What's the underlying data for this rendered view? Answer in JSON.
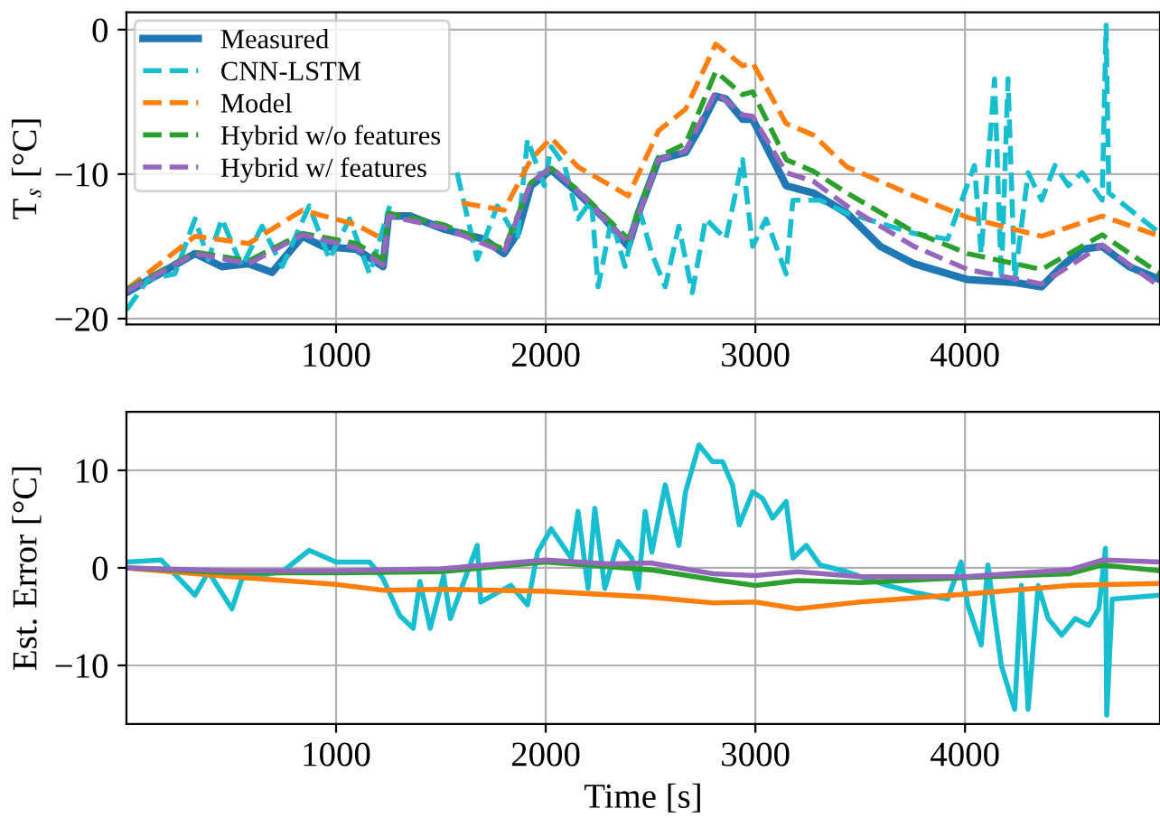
{
  "chart_data": [
    {
      "type": "line",
      "ylabel": "T$_{s}$ [°C]",
      "xlim": [
        0,
        4930
      ],
      "ylim": [
        -20.4,
        1.2
      ],
      "xticks": [
        1000,
        2000,
        3000,
        4000
      ],
      "yticks": [
        -20,
        -10,
        0
      ],
      "grid": true,
      "legend": "top left",
      "series": [
        {
          "name": "Measured",
          "color": "#1f77b4",
          "line_style": "solid",
          "x": [
            0,
            327,
            455,
            583,
            695,
            840,
            936,
            1096,
            1224,
            1250,
            1352,
            1513,
            1705,
            1801,
            1865,
            1929,
            2026,
            2154,
            2282,
            2394,
            2442,
            2538,
            2667,
            2731,
            2811,
            2859,
            2939,
            2987,
            3147,
            3276,
            3436,
            3596,
            3756,
            4013,
            4237,
            4365,
            4461,
            4558,
            4654,
            4782,
            4930
          ],
          "values": [
            -18.2,
            -15.5,
            -16.4,
            -16.2,
            -16.8,
            -14.3,
            -15.0,
            -15.2,
            -16.4,
            -12.9,
            -12.9,
            -13.8,
            -14.5,
            -15.5,
            -14.1,
            -10.8,
            -9.7,
            -11.3,
            -13.1,
            -15.0,
            -12.7,
            -9.0,
            -8.5,
            -6.9,
            -4.6,
            -4.8,
            -6.2,
            -6.2,
            -10.8,
            -11.3,
            -12.7,
            -15.0,
            -16.2,
            -17.3,
            -17.5,
            -17.8,
            -16.4,
            -15.2,
            -15.0,
            -16.4,
            -17.3
          ]
        },
        {
          "name": "CNN-LSTM",
          "color": "#17becf",
          "line_style": "dashed",
          "x": [
            0,
            103,
            231,
            327,
            391,
            455,
            551,
            647,
            743,
            872,
            968,
            1064,
            1160,
            1256,
            1352,
            1384,
            1449,
            1513,
            1577,
            1673,
            1769,
            1865,
            1913,
            1993,
            2026,
            2090,
            2154,
            2218,
            2250,
            2314,
            2378,
            2442,
            2506,
            2570,
            2635,
            2699,
            2763,
            2859,
            2939,
            2987,
            3051,
            3147,
            3179,
            3308,
            3436,
            3756,
            3917,
            4045,
            4077,
            4141,
            4173,
            4205,
            4237,
            4301,
            4365,
            4429,
            4493,
            4558,
            4654,
            4673,
            4686,
            4930
          ],
          "values": [
            -19.4,
            -17.3,
            -16.9,
            -13.1,
            -15.9,
            -13.1,
            -16.4,
            -13.6,
            -16.4,
            -12.2,
            -15.9,
            -13.1,
            -16.9,
            -12.2,
            null,
            null,
            null,
            null,
            -9.9,
            -15.9,
            -12.2,
            -14.5,
            -7.6,
            -10.8,
            -8.1,
            -9.4,
            -13.1,
            -11.8,
            -17.8,
            -13.1,
            -16.4,
            -12.2,
            -15.5,
            -17.8,
            -13.6,
            -18.2,
            -13.1,
            -14.5,
            -9.0,
            -15.0,
            -13.1,
            -16.9,
            -11.8,
            -11.8,
            -12.7,
            -14.1,
            -14.5,
            -9.4,
            -15.5,
            -3.4,
            -17.3,
            -3.4,
            -17.3,
            -9.9,
            -11.8,
            -9.4,
            -10.8,
            -9.9,
            -11.8,
            0.3,
            -11.3,
            -14.1
          ]
        },
        {
          "name": "Model",
          "color": "#ff7f0e",
          "line_style": "dashed",
          "x": [
            0,
            327,
            583,
            840,
            1096,
            1224,
            1250,
            1513,
            1600,
            1801,
            1929,
            2026,
            2154,
            2394,
            2538,
            2667,
            2811,
            2939,
            2987,
            3147,
            3276,
            3436,
            3756,
            4013,
            4365,
            4654,
            4930
          ],
          "values": [
            -18.0,
            -14.3,
            -14.8,
            -12.5,
            -13.5,
            -14.5,
            null,
            null,
            -12.0,
            -12.5,
            -9.0,
            -7.5,
            -9.5,
            -11.5,
            -7.0,
            -5.5,
            -1.0,
            -2.5,
            -2.3,
            -6.5,
            -7.3,
            -9.5,
            -11.5,
            -13.0,
            -14.3,
            -12.9,
            -14.3
          ]
        },
        {
          "name": "Hybrid w/o features",
          "color": "#2ca02c",
          "line_style": "dashed",
          "x": [
            0,
            327,
            583,
            840,
            1096,
            1224,
            1250,
            1513,
            1801,
            1929,
            2026,
            2154,
            2394,
            2538,
            2667,
            2811,
            2939,
            2987,
            3147,
            3276,
            3436,
            3756,
            4013,
            4365,
            4654,
            4930
          ],
          "values": [
            -18.0,
            -15.4,
            -16.0,
            -14.1,
            -14.8,
            -15.9,
            -12.7,
            -13.5,
            -15.2,
            -10.6,
            -9.6,
            -11.1,
            -14.5,
            -8.8,
            -7.9,
            -2.9,
            -4.5,
            -4.3,
            -9.0,
            -9.8,
            -11.3,
            -14.0,
            -15.5,
            -16.6,
            -14.2,
            -16.9
          ]
        },
        {
          "name": "Hybrid w/ features",
          "color": "#9467bd",
          "line_style": "dashed",
          "x": [
            0,
            327,
            583,
            840,
            1096,
            1224,
            1250,
            1513,
            1801,
            1929,
            2026,
            2154,
            2394,
            2538,
            2667,
            2811,
            2939,
            2987,
            3147,
            3276,
            3436,
            3756,
            4013,
            4365,
            4654,
            4930
          ],
          "values": [
            -18.1,
            -15.5,
            -16.2,
            -14.2,
            -15.1,
            -16.3,
            -12.9,
            -13.7,
            -15.4,
            -10.6,
            -9.5,
            -11.2,
            -14.8,
            -9.0,
            -8.4,
            -4.3,
            -5.9,
            -6.0,
            -9.9,
            -10.5,
            -12.2,
            -15.0,
            -16.6,
            -17.6,
            -14.9,
            -17.8
          ]
        }
      ]
    },
    {
      "type": "line",
      "xlabel": "Time [s]",
      "ylabel": "Est. Error [°C]",
      "xlim": [
        0,
        4930
      ],
      "ylim": [
        -16,
        16
      ],
      "xticks": [
        1000,
        2000,
        3000,
        4000
      ],
      "yticks": [
        -10,
        0,
        10
      ],
      "grid": true,
      "series": [
        {
          "color": "#17becf",
          "line_style": "solid",
          "x": [
            0,
            166,
            327,
            391,
            503,
            551,
            743,
            872,
            1000,
            1160,
            1224,
            1304,
            1368,
            1400,
            1449,
            1513,
            1545,
            1673,
            1690,
            1833,
            1913,
            1961,
            2026,
            2122,
            2154,
            2202,
            2234,
            2282,
            2346,
            2410,
            2442,
            2474,
            2506,
            2570,
            2635,
            2667,
            2731,
            2795,
            2843,
            2891,
            2923,
            2987,
            3035,
            3083,
            3147,
            3179,
            3243,
            3308,
            3436,
            3628,
            3756,
            3917,
            3981,
            4013,
            4077,
            4109,
            4173,
            4237,
            4269,
            4301,
            4349,
            4397,
            4461,
            4526,
            4590,
            4638,
            4670,
            4676,
            4702,
            4930
          ],
          "values": [
            0.6,
            0.8,
            -2.8,
            -0.4,
            -4.2,
            -1.1,
            -0.4,
            1.8,
            0.6,
            0.6,
            -1.1,
            -4.9,
            -6.2,
            -1.4,
            -6.2,
            -0.8,
            -5.2,
            2.3,
            -3.5,
            -1.8,
            -3.8,
            1.6,
            4.0,
            1.0,
            5.8,
            -2.1,
            6.1,
            -2.1,
            2.7,
            1.0,
            -2.1,
            5.8,
            1.6,
            8.5,
            2.3,
            7.8,
            12.6,
            10.9,
            10.9,
            8.5,
            4.4,
            7.8,
            7.1,
            5.1,
            6.8,
            1.0,
            2.3,
            0.3,
            -0.4,
            -1.8,
            -2.5,
            -3.2,
            0.6,
            -3.8,
            -7.9,
            0.3,
            -10.0,
            -14.5,
            -1.8,
            -14.5,
            -1.8,
            -5.2,
            -6.9,
            -5.2,
            -5.9,
            -4.2,
            2.0,
            -15.1,
            -3.2,
            -2.8
          ]
        },
        {
          "color": "#ff7f0e",
          "line_style": "solid",
          "x": [
            0,
            500,
            1000,
            1224,
            1500,
            2000,
            2500,
            2800,
            3000,
            3200,
            3500,
            4000,
            4500,
            4930
          ],
          "values": [
            0,
            -0.9,
            -1.7,
            -2.3,
            -2.2,
            -2.4,
            -3.0,
            -3.6,
            -3.5,
            -4.2,
            -3.5,
            -2.7,
            -1.8,
            -1.6
          ]
        },
        {
          "color": "#2ca02c",
          "line_style": "solid",
          "x": [
            0,
            500,
            1000,
            1500,
            2000,
            2500,
            2800,
            3000,
            3200,
            3500,
            4000,
            4500,
            4654,
            4930
          ],
          "values": [
            0,
            -0.5,
            -0.5,
            -0.4,
            0.6,
            -0.2,
            -1.2,
            -1.8,
            -1.3,
            -1.5,
            -1.0,
            -0.6,
            0.3,
            -0.3
          ]
        },
        {
          "color": "#9467bd",
          "line_style": "solid",
          "x": [
            0,
            500,
            1000,
            1500,
            2000,
            2300,
            2500,
            2800,
            3000,
            3200,
            3500,
            4000,
            4500,
            4654,
            4930
          ],
          "values": [
            0,
            -0.3,
            -0.3,
            -0.1,
            0.8,
            0.4,
            0.5,
            -0.6,
            -0.8,
            -0.4,
            -0.9,
            -0.9,
            -0.2,
            0.8,
            0.6
          ]
        }
      ]
    }
  ]
}
